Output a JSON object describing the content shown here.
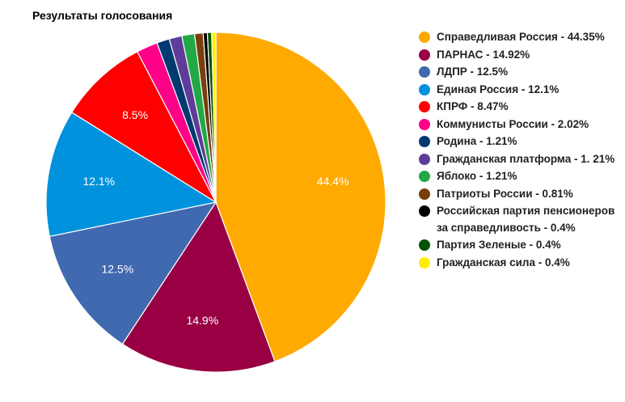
{
  "chart_data": {
    "type": "pie",
    "title": "Результаты голосования",
    "slices": [
      {
        "legend": "Справедливая Россия - 44.35%",
        "value": 44.35,
        "label": "44.4%",
        "color": "#FFAA00"
      },
      {
        "legend": "ПАРНАС - 14.92%",
        "value": 14.92,
        "label": "14.9%",
        "color": "#990044"
      },
      {
        "legend": "ЛДПР - 12.5%",
        "value": 12.5,
        "label": "12.5%",
        "color": "#4169B0"
      },
      {
        "legend": "Единая Россия - 12.1%",
        "value": 12.1,
        "label": "12.1%",
        "color": "#0092DC"
      },
      {
        "legend": "КПРФ - 8.47%",
        "value": 8.47,
        "label": "8.5%",
        "color": "#FF0000"
      },
      {
        "legend": "Коммунисты России - 2.02%",
        "value": 2.02,
        "label": "",
        "color": "#FF0088"
      },
      {
        "legend": "Родина - 1.21%",
        "value": 1.21,
        "label": "",
        "color": "#003A70"
      },
      {
        "legend": "Гражданская платформа - 1. 21%",
        "value": 1.21,
        "label": "",
        "color": "#5E3C99"
      },
      {
        "legend": "Яблоко - 1.21%",
        "value": 1.21,
        "label": "",
        "color": "#22A844"
      },
      {
        "legend": "Патриоты России - 0.81%",
        "value": 0.81,
        "label": "",
        "color": "#7A3E0E"
      },
      {
        "legend": "Российская партия пенсионеров за справедливость - 0.4%",
        "value": 0.4,
        "label": "",
        "color": "#000000"
      },
      {
        "legend": "Партия Зеленые - 0.4%",
        "value": 0.4,
        "label": "",
        "color": "#005500"
      },
      {
        "legend": "Гражданская сила - 0.4%",
        "value": 0.4,
        "label": "",
        "color": "#FFEE00"
      }
    ],
    "legend_position": "right"
  }
}
